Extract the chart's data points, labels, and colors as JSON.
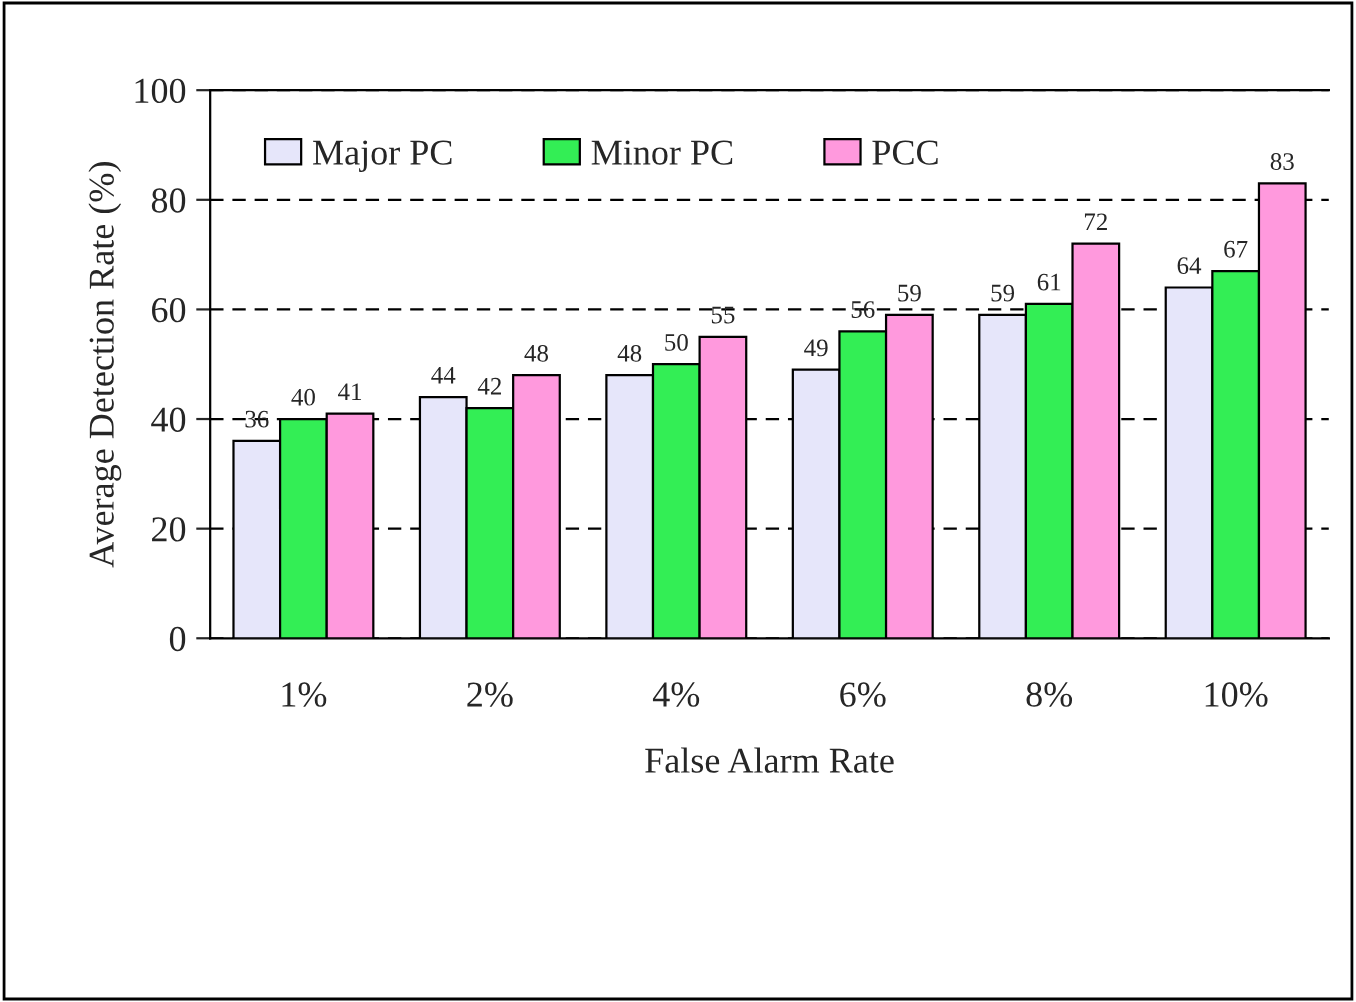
{
  "chart_data": {
    "type": "bar",
    "xlabel": "False Alarm Rate",
    "ylabel": "Average Detection Rate (%)",
    "categories": [
      "1%",
      "2%",
      "4%",
      "6%",
      "8%",
      "10%"
    ],
    "series": [
      {
        "name": "Major PC",
        "color": "#e6e6fa",
        "values": [
          36,
          44,
          48,
          49,
          59,
          64
        ]
      },
      {
        "name": "Minor PC",
        "color": "#33ee55",
        "values": [
          40,
          42,
          50,
          56,
          61,
          67
        ]
      },
      {
        "name": "PCC",
        "color": "#ff99dd",
        "values": [
          41,
          48,
          55,
          59,
          72,
          83
        ]
      }
    ],
    "ylim": [
      0,
      100
    ],
    "yticks": [
      0,
      20,
      40,
      60,
      80,
      100
    ],
    "grid": "y",
    "legend": "top left",
    "data_labels": true
  }
}
